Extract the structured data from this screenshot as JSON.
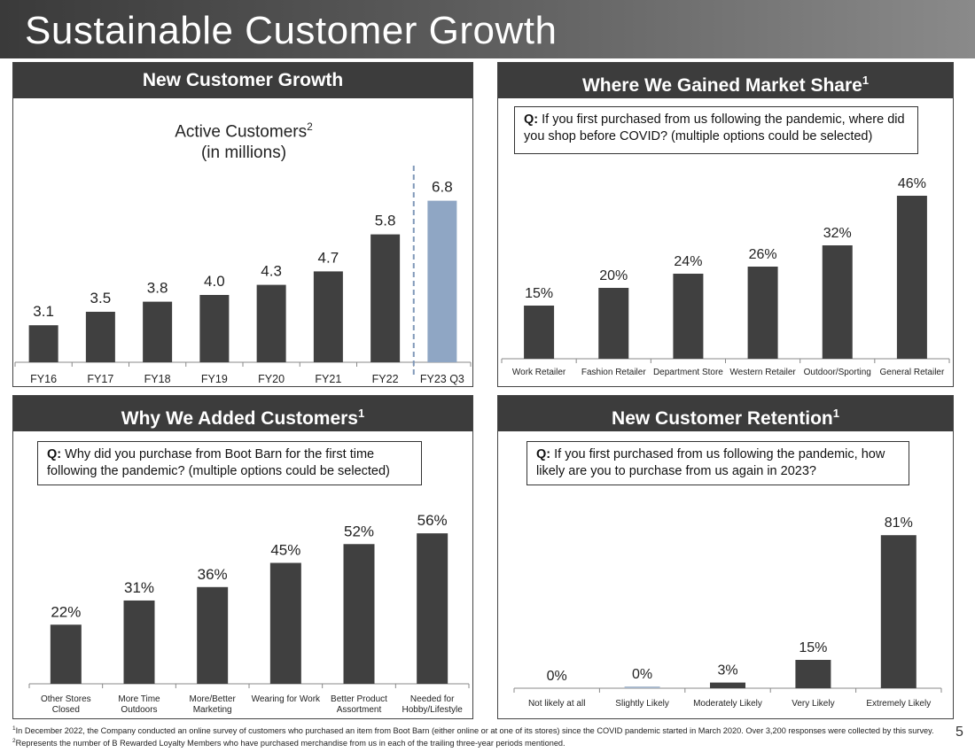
{
  "page": {
    "title": "Sustainable Customer Growth",
    "page_number": "5",
    "footnote_part1_mark": "1",
    "footnote_part1": "In December 2022, the Company conducted an online survey of customers who purchased an item from Boot Barn (either online or at one of its stores) since the COVID pandemic started in March 2020. Over 3,200 responses were collected by this survey.",
    "footnote_part2_mark": "2",
    "footnote_part2": "Represents the number of B Rewarded Loyalty Members who have purchased merchandise from us in each of the trailing three-year periods mentioned."
  },
  "panels": {
    "growth": {
      "header": "New Customer Growth",
      "subtitle_line1": "Active Customers",
      "subtitle_sup": "2",
      "subtitle_line2": "(in millions)"
    },
    "market": {
      "header": "Where We Gained Market Share",
      "header_sup": "1",
      "q_label": "Q:",
      "question": "If you first purchased from us following the pandemic, where did you shop before COVID? (multiple options could be selected)"
    },
    "why": {
      "header": "Why We Added Customers",
      "header_sup": "1",
      "q_label": "Q:",
      "question": "Why did you purchase from Boot Barn for the first time following the pandemic? (multiple options could be selected)"
    },
    "retention": {
      "header": "New Customer Retention",
      "header_sup": "1",
      "q_label": "Q:",
      "question": "If you first purchased from us following the pandemic, how likely are you to purchase from us again in 2023?"
    }
  },
  "colors": {
    "bar_dark": "#404040",
    "bar_highlight": "#8fa6c4",
    "bar_light": "#a8b8cc",
    "divider": "#7f97b8"
  },
  "chart_data": [
    {
      "id": "growth",
      "type": "bar",
      "title": "Active Customers (in millions)",
      "categories": [
        "FY16",
        "FY17",
        "FY18",
        "FY19",
        "FY20",
        "FY21",
        "FY22",
        "FY23 Q3"
      ],
      "values": [
        3.1,
        3.5,
        3.8,
        4.0,
        4.3,
        4.7,
        5.8,
        6.8
      ],
      "labels": [
        "3.1",
        "3.5",
        "3.8",
        "4.0",
        "4.3",
        "4.7",
        "5.8",
        "6.8"
      ],
      "highlight_index": 7,
      "ylim": [
        2.0,
        7.0
      ]
    },
    {
      "id": "market",
      "type": "bar",
      "title": "Where We Gained Market Share",
      "categories": [
        "Work Retailer",
        "Fashion Retailer",
        "Department Store",
        "Western Retailer",
        "Outdoor/Sporting",
        "General Retailer"
      ],
      "values": [
        15,
        20,
        24,
        26,
        32,
        46
      ],
      "labels": [
        "15%",
        "20%",
        "24%",
        "26%",
        "32%",
        "46%"
      ],
      "ylim": [
        0,
        50
      ]
    },
    {
      "id": "why",
      "type": "bar",
      "title": "Why We Added Customers",
      "categories": [
        [
          "Other Stores",
          "Closed"
        ],
        [
          "More Time",
          "Outdoors"
        ],
        [
          "More/Better",
          "Marketing"
        ],
        [
          "Wearing for Work"
        ],
        [
          "Better Product",
          "Assortment"
        ],
        [
          "Needed for",
          "Hobby/Lifestyle"
        ]
      ],
      "values": [
        22,
        31,
        36,
        45,
        52,
        56
      ],
      "labels": [
        "22%",
        "31%",
        "36%",
        "45%",
        "52%",
        "56%"
      ],
      "ylim": [
        0,
        60
      ]
    },
    {
      "id": "retention",
      "type": "bar",
      "title": "New Customer Retention",
      "categories": [
        "Not likely at all",
        "Slightly Likely",
        "Moderately Likely",
        "Very Likely",
        "Extremely Likely"
      ],
      "values": [
        0,
        0.4,
        3,
        15,
        81
      ],
      "labels": [
        "0%",
        "0%",
        "3%",
        "15%",
        "81%"
      ],
      "ylim": [
        0,
        90
      ]
    }
  ]
}
